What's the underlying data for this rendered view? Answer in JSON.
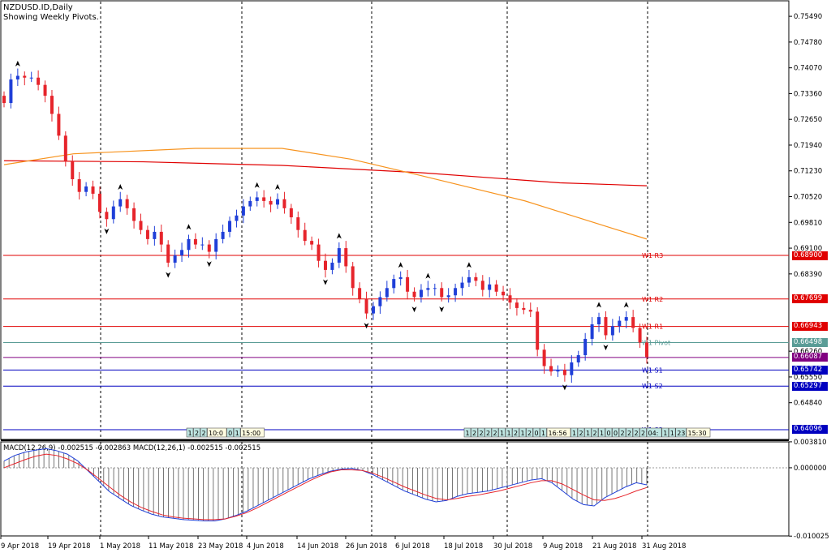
{
  "chart_data": {
    "type": "candlestick",
    "symbol_title": "NZDUSD.ID,Daily",
    "subtitle": "Showing Weekly Pivots.",
    "y_ticks": [
      "0.75490",
      "0.74780",
      "0.74070",
      "0.73360",
      "0.72650",
      "0.71940",
      "0.71230",
      "0.70520",
      "0.69810",
      "0.69100",
      "0.68390",
      "0.66260",
      "0.65550",
      "0.64840"
    ],
    "ylim": [
      0.6385,
      0.7585
    ],
    "x_labels": [
      "9 Apr 2018",
      "19 Apr 2018",
      "1 May 2018",
      "11 May 2018",
      "23 May 2018",
      "4 Jun 2018",
      "14 Jun 2018",
      "26 Jun 2018",
      "6 Jul 2018",
      "18 Jul 2018",
      "30 Jul 2018",
      "9 Aug 2018",
      "21 Aug 2018",
      "31 Aug 2018"
    ],
    "pivots": [
      {
        "name": "W1 R3",
        "value": 0.689,
        "tag": "0.68900",
        "color": "#e00000"
      },
      {
        "name": "W1 R2",
        "value": 0.67699,
        "tag": "0.67699",
        "color": "#e00000"
      },
      {
        "name": "W1 R1",
        "value": 0.66943,
        "tag": "0.66943",
        "color": "#e00000"
      },
      {
        "name": "W1 Pivot",
        "value": 0.66498,
        "tag": "0.66498",
        "color": "#5a9c96"
      },
      {
        "name": "W1 S1",
        "value": 0.65742,
        "tag": "0.65742",
        "color": "#0000c0"
      },
      {
        "name": "W1 S2",
        "value": 0.65297,
        "tag": "0.65297",
        "color": "#0000c0"
      },
      {
        "name": "W1 S3",
        "value": 0.64096,
        "tag": "0.64096",
        "color": "#0000c0"
      }
    ],
    "current_price": {
      "value": 0.66087,
      "tag": "0.66087",
      "color": "#800080"
    },
    "close_series": [
      0.731,
      0.7375,
      0.7385,
      0.738,
      0.738,
      0.736,
      0.733,
      0.728,
      0.722,
      0.715,
      0.71,
      0.7065,
      0.708,
      0.706,
      0.701,
      0.699,
      0.7025,
      0.7045,
      0.702,
      0.6985,
      0.696,
      0.6935,
      0.6955,
      0.692,
      0.687,
      0.689,
      0.6905,
      0.6935,
      0.692,
      0.692,
      0.69,
      0.6935,
      0.6955,
      0.6985,
      0.7,
      0.7025,
      0.704,
      0.705,
      0.704,
      0.703,
      0.7045,
      0.702,
      0.6995,
      0.696,
      0.693,
      0.692,
      0.6875,
      0.685,
      0.687,
      0.691,
      0.686,
      0.68,
      0.677,
      0.673,
      0.675,
      0.6775,
      0.68,
      0.6825,
      0.683,
      0.679,
      0.6775,
      0.6795,
      0.68,
      0.68,
      0.6775,
      0.678,
      0.68,
      0.6815,
      0.683,
      0.682,
      0.6795,
      0.681,
      0.679,
      0.678,
      0.676,
      0.6745,
      0.674,
      0.6735,
      0.663,
      0.6585,
      0.657,
      0.6575,
      0.656,
      0.6595,
      0.6615,
      0.666,
      0.67,
      0.672,
      0.667,
      0.6695,
      0.671,
      0.672,
      0.669,
      0.665,
      0.661
    ],
    "ma_slow": {
      "name": "",
      "color": "#e00000",
      "points": [
        [
          0,
          0.7151
        ],
        [
          40,
          0.7148
        ],
        [
          80,
          0.7138
        ],
        [
          120,
          0.7118
        ],
        [
          160,
          0.709
        ],
        [
          185,
          0.7082
        ]
      ]
    },
    "ma_fast": {
      "name": "",
      "color": "#f7931e",
      "points": [
        [
          0,
          0.714
        ],
        [
          20,
          0.717
        ],
        [
          55,
          0.7185
        ],
        [
          80,
          0.7185
        ],
        [
          100,
          0.7155
        ],
        [
          120,
          0.711
        ],
        [
          150,
          0.704
        ],
        [
          185,
          0.6935
        ]
      ]
    },
    "time_labels_1": [
      "1",
      "2",
      "2",
      "10:0",
      "0",
      "1",
      "15:00"
    ],
    "time_labels_2": [
      "1",
      "2",
      "2",
      "2",
      "2",
      "1",
      "1",
      "2",
      "1",
      "2",
      "0",
      "1",
      "16:56",
      "1",
      "2",
      "1",
      "2",
      "1",
      "0",
      "0",
      "2",
      "2",
      "2",
      "2",
      "04:",
      "1",
      "1",
      "23",
      "15:30"
    ],
    "macd": {
      "label": "MACD(12,26,9) -0.002515 -0.002863 MACD(12,26,1) -0.002515 -0.002515",
      "ticks": [
        "0.003810",
        "0.000000",
        "-0.010025"
      ],
      "ylim": [
        -0.01,
        0.0038
      ],
      "main": [
        0.001,
        0.0018,
        0.0023,
        0.0026,
        0.0028,
        0.0025,
        0.002,
        0.001,
        -0.0005,
        -0.002,
        -0.0035,
        -0.0045,
        -0.0055,
        -0.0062,
        -0.0068,
        -0.0072,
        -0.0074,
        -0.0076,
        -0.0077,
        -0.0078,
        -0.0078,
        -0.0075,
        -0.007,
        -0.0064,
        -0.0056,
        -0.0048,
        -0.004,
        -0.0032,
        -0.0024,
        -0.0016,
        -0.001,
        -0.0005,
        -0.0002,
        -0.0001,
        -0.0004,
        -0.001,
        -0.0018,
        -0.0026,
        -0.0034,
        -0.004,
        -0.0046,
        -0.005,
        -0.0048,
        -0.0042,
        -0.0038,
        -0.0036,
        -0.0034,
        -0.003,
        -0.0026,
        -0.0022,
        -0.0018,
        -0.0016,
        -0.0022,
        -0.0034,
        -0.0046,
        -0.0054,
        -0.0056,
        -0.0044,
        -0.0036,
        -0.0028,
        -0.0022,
        -0.0025
      ],
      "signal": [
        0.0,
        0.0006,
        0.0012,
        0.0017,
        0.002,
        0.0018,
        0.0013,
        0.0006,
        -0.0004,
        -0.0016,
        -0.0028,
        -0.004,
        -0.005,
        -0.0058,
        -0.0064,
        -0.0069,
        -0.0072,
        -0.0074,
        -0.0075,
        -0.0076,
        -0.0076,
        -0.0075,
        -0.0071,
        -0.0066,
        -0.0059,
        -0.0051,
        -0.0043,
        -0.0035,
        -0.0027,
        -0.0019,
        -0.0012,
        -0.0006,
        -0.0003,
        -0.0003,
        -0.0004,
        -0.0008,
        -0.0014,
        -0.0021,
        -0.0028,
        -0.0034,
        -0.004,
        -0.0045,
        -0.0047,
        -0.0045,
        -0.0042,
        -0.004,
        -0.0037,
        -0.0034,
        -0.003,
        -0.0026,
        -0.0022,
        -0.0019,
        -0.0019,
        -0.0024,
        -0.0032,
        -0.004,
        -0.0047,
        -0.0048,
        -0.0045,
        -0.004,
        -0.0034,
        -0.0029
      ]
    }
  }
}
